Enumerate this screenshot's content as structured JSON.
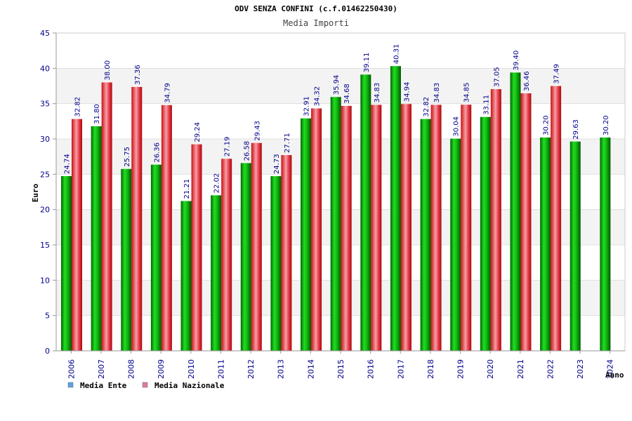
{
  "chart_data": {
    "type": "bar",
    "title": "ODV SENZA CONFINI (c.f.01462250430)",
    "subtitle": "Media Importi",
    "ylabel": "Euro",
    "xlabel": "Anno",
    "ylim": [
      0,
      45
    ],
    "yticks": [
      "0",
      "5",
      "10",
      "15",
      "20",
      "25",
      "30",
      "35",
      "40",
      "45"
    ],
    "grid": "horizontal bands",
    "legend_position": "bottom-left",
    "categories": [
      "2006",
      "2007",
      "2008",
      "2009",
      "2010",
      "2011",
      "2012",
      "2013",
      "2014",
      "2015",
      "2016",
      "2017",
      "2018",
      "2019",
      "2020",
      "2021",
      "2022",
      "2023",
      "2024"
    ],
    "series": [
      {
        "name": "Media Ente",
        "color": "#00aa00",
        "legend_color": "#5ba3e6",
        "values": [
          24.74,
          31.8,
          25.75,
          26.36,
          21.21,
          22.02,
          26.58,
          24.73,
          32.91,
          35.94,
          39.11,
          40.31,
          32.82,
          30.04,
          33.11,
          39.4,
          30.2,
          29.63,
          30.2
        ],
        "labels": [
          "24.74",
          "31.80",
          "25.75",
          "26.36",
          "21.21",
          "22.02",
          "26.58",
          "24.73",
          "32.91",
          "35.94",
          "39.11",
          "40.31",
          "32.82",
          "30.04",
          "33.11",
          "39.40",
          "30.20",
          "29.63",
          "30.20"
        ]
      },
      {
        "name": "Media Nazionale",
        "color": "#e02020",
        "legend_color": "#e07aa0",
        "values": [
          32.82,
          38.0,
          37.36,
          34.79,
          29.24,
          27.19,
          29.43,
          27.71,
          34.32,
          34.68,
          34.83,
          34.94,
          34.83,
          34.85,
          37.05,
          36.46,
          37.49,
          null,
          null
        ],
        "labels": [
          "32.82",
          "38.00",
          "37.36",
          "34.79",
          "29.24",
          "27.19",
          "29.43",
          "27.71",
          "34.32",
          "34.68",
          "34.83",
          "34.94",
          "34.83",
          "34.85",
          "37.05",
          "36.46",
          "37.49",
          null,
          null
        ]
      }
    ]
  }
}
